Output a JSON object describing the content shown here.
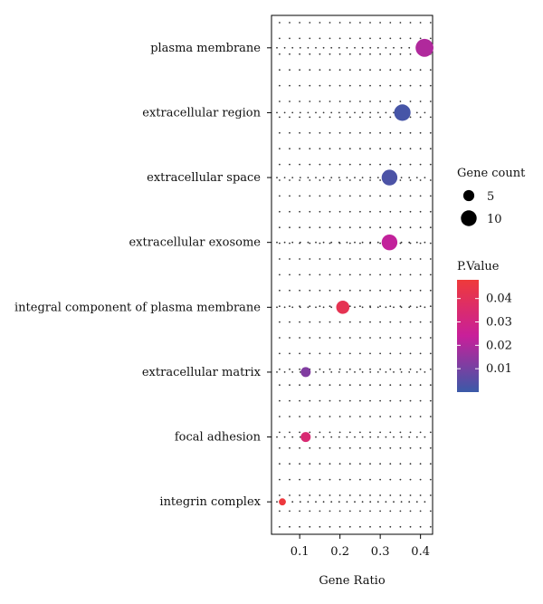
{
  "chart_data": {
    "type": "scatter",
    "title": "",
    "xlabel": "Gene Ratio",
    "ylabel": "",
    "xlim": [
      0.03,
      0.43
    ],
    "x_ticks": [
      0.1,
      0.2,
      0.3,
      0.4
    ],
    "x_tick_labels": [
      "0.1",
      "0.2",
      "0.3",
      "0.4"
    ],
    "grid": "dotted",
    "legend_placement": "right",
    "categories": [
      "plasma membrane",
      "extracellular region",
      "extracellular space",
      "extracellular exosome",
      "integral component of plasma membrane",
      "extracellular matrix",
      "focal adhesion",
      "integrin complex"
    ],
    "points": [
      {
        "term": "plasma membrane",
        "gene_ratio": 0.41,
        "count": 13,
        "pvalue": 0.02
      },
      {
        "term": "extracellular region",
        "gene_ratio": 0.355,
        "count": 11,
        "pvalue": 0.002
      },
      {
        "term": "extracellular space",
        "gene_ratio": 0.323,
        "count": 10,
        "pvalue": 0.003
      },
      {
        "term": "extracellular exosome",
        "gene_ratio": 0.323,
        "count": 10,
        "pvalue": 0.023
      },
      {
        "term": "integral component of plasma membrane",
        "gene_ratio": 0.207,
        "count": 7,
        "pvalue": 0.042
      },
      {
        "term": "extracellular matrix",
        "gene_ratio": 0.115,
        "count": 4,
        "pvalue": 0.012
      },
      {
        "term": "focal adhesion",
        "gene_ratio": 0.115,
        "count": 4,
        "pvalue": 0.034
      },
      {
        "term": "integrin complex",
        "gene_ratio": 0.057,
        "count": 2,
        "pvalue": 0.047
      }
    ],
    "size_legend": {
      "title": "Gene count",
      "entries": [
        {
          "label": "5",
          "value": 5
        },
        {
          "label": "10",
          "value": 10
        }
      ]
    },
    "color_legend": {
      "title": "P.Value",
      "range": [
        0.0,
        0.048
      ],
      "ticks": [
        {
          "label": "0.04",
          "value": 0.04
        },
        {
          "label": "0.03",
          "value": 0.03
        },
        {
          "label": "0.02",
          "value": 0.02
        },
        {
          "label": "0.01",
          "value": 0.01
        }
      ],
      "low_color": "#3a5aa8",
      "mid_color": "#c81f9a",
      "high_color": "#ef3a3a"
    }
  }
}
